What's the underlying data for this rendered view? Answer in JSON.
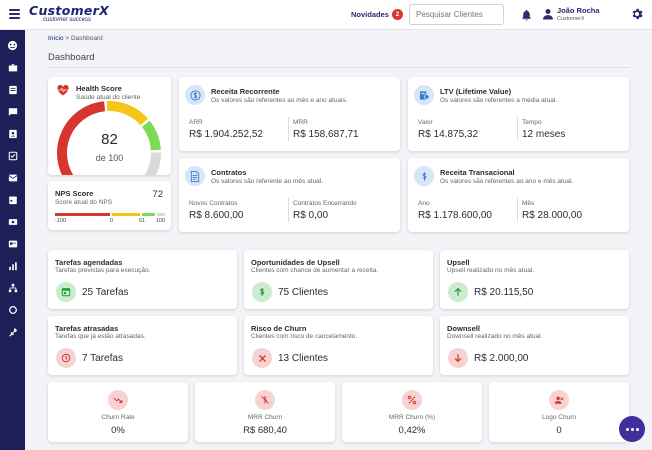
{
  "header": {
    "logo_main": "CustomerX",
    "logo_sub": "customer success",
    "news_label": "Novidades",
    "news_count": "2",
    "search_placeholder": "Pesquisar Clientes",
    "user_name": "João Rocha",
    "user_company": "CustomerX"
  },
  "breadcrumb": {
    "home": "Início",
    "separator": ">",
    "current": "Dashboard"
  },
  "page_title": "Dashboard",
  "health": {
    "title": "Health Score",
    "subtitle": "Saúde atual do cliente",
    "score": "82",
    "of": "de 100",
    "value": 82,
    "max": 100,
    "colors": {
      "red": "#d8352e",
      "yellow": "#f5c518",
      "green": "#7ed957",
      "grey": "#d9d9d9",
      "icon": "#d8352e"
    }
  },
  "nps": {
    "title": "NPS Score",
    "subtitle": "Score atual do NPS",
    "score": "72",
    "ticks": [
      "-100",
      "0",
      "51",
      "100"
    ]
  },
  "revenue": {
    "title": "Receita Recorrente",
    "subtitle": "Os valores são referentes ao mês e ano atuais.",
    "arr_label": "ARR",
    "arr_value": "R$ 1.904.252,52",
    "mrr_label": "MRR",
    "mrr_value": "R$ 158.687,71"
  },
  "ltv": {
    "title": "LTV (Lifetime Value)",
    "subtitle": "Os valores são referentes a média atual.",
    "value_label": "Valor",
    "value": "R$ 14.875,32",
    "time_label": "Tempo",
    "time_value": "12 meses"
  },
  "contracts": {
    "title": "Contratos",
    "subtitle": "Os valores são referente ao mês atual.",
    "new_label": "Novos Contratos",
    "new_value": "R$ 8.600,00",
    "closing_label": "Contratos Encerrando",
    "closing_value": "R$ 0,00"
  },
  "transactional": {
    "title": "Receita Transacional",
    "subtitle": "Os valores são referentes ao ano e mês atual.",
    "year_label": "Ano",
    "year_value": "R$ 1.178.600,00",
    "month_label": "Mês",
    "month_value": "R$ 28.000,00"
  },
  "tasks_scheduled": {
    "title": "Tarefas agendadas",
    "subtitle": "Tarefas previstas para execução.",
    "value": "25 Tarefas"
  },
  "upsell_opps": {
    "title": "Oportunidades de Upsell",
    "subtitle": "Clientes com chance de aumentar a receita.",
    "value": "75 Clientes"
  },
  "upsell": {
    "title": "Upsell",
    "subtitle": "Upsell realizado no mês atual.",
    "value": "R$ 20.115,50"
  },
  "tasks_late": {
    "title": "Tarefas atrasadas",
    "subtitle": "Tarefas que já estão atrasadas.",
    "value": "7 Tarefas"
  },
  "churn_risk": {
    "title": "Risco de Churn",
    "subtitle": "Clientes com risco de cancelamento.",
    "value": "13 Clientes"
  },
  "downsell": {
    "title": "Downsell",
    "subtitle": "Downsell realizado no mês atual.",
    "value": "R$ 2.000,00"
  },
  "churn_rate": {
    "label": "Churn Rate",
    "value": "0%"
  },
  "mrr_churn": {
    "label": "MRR Churn",
    "value": "R$ 680,40"
  },
  "mrr_churn_pct": {
    "label": "MRR Churn (%)",
    "value": "0,42%"
  },
  "logo_churn": {
    "label": "Logo Churn",
    "value": "0"
  },
  "colors": {
    "sidebar": "#1e1f58",
    "brand": "#1f2270",
    "fab": "#3e2f9a",
    "blue_icon": "#3a7bd5",
    "green_icon": "#1f9d3c",
    "red_icon": "#d8352e"
  }
}
